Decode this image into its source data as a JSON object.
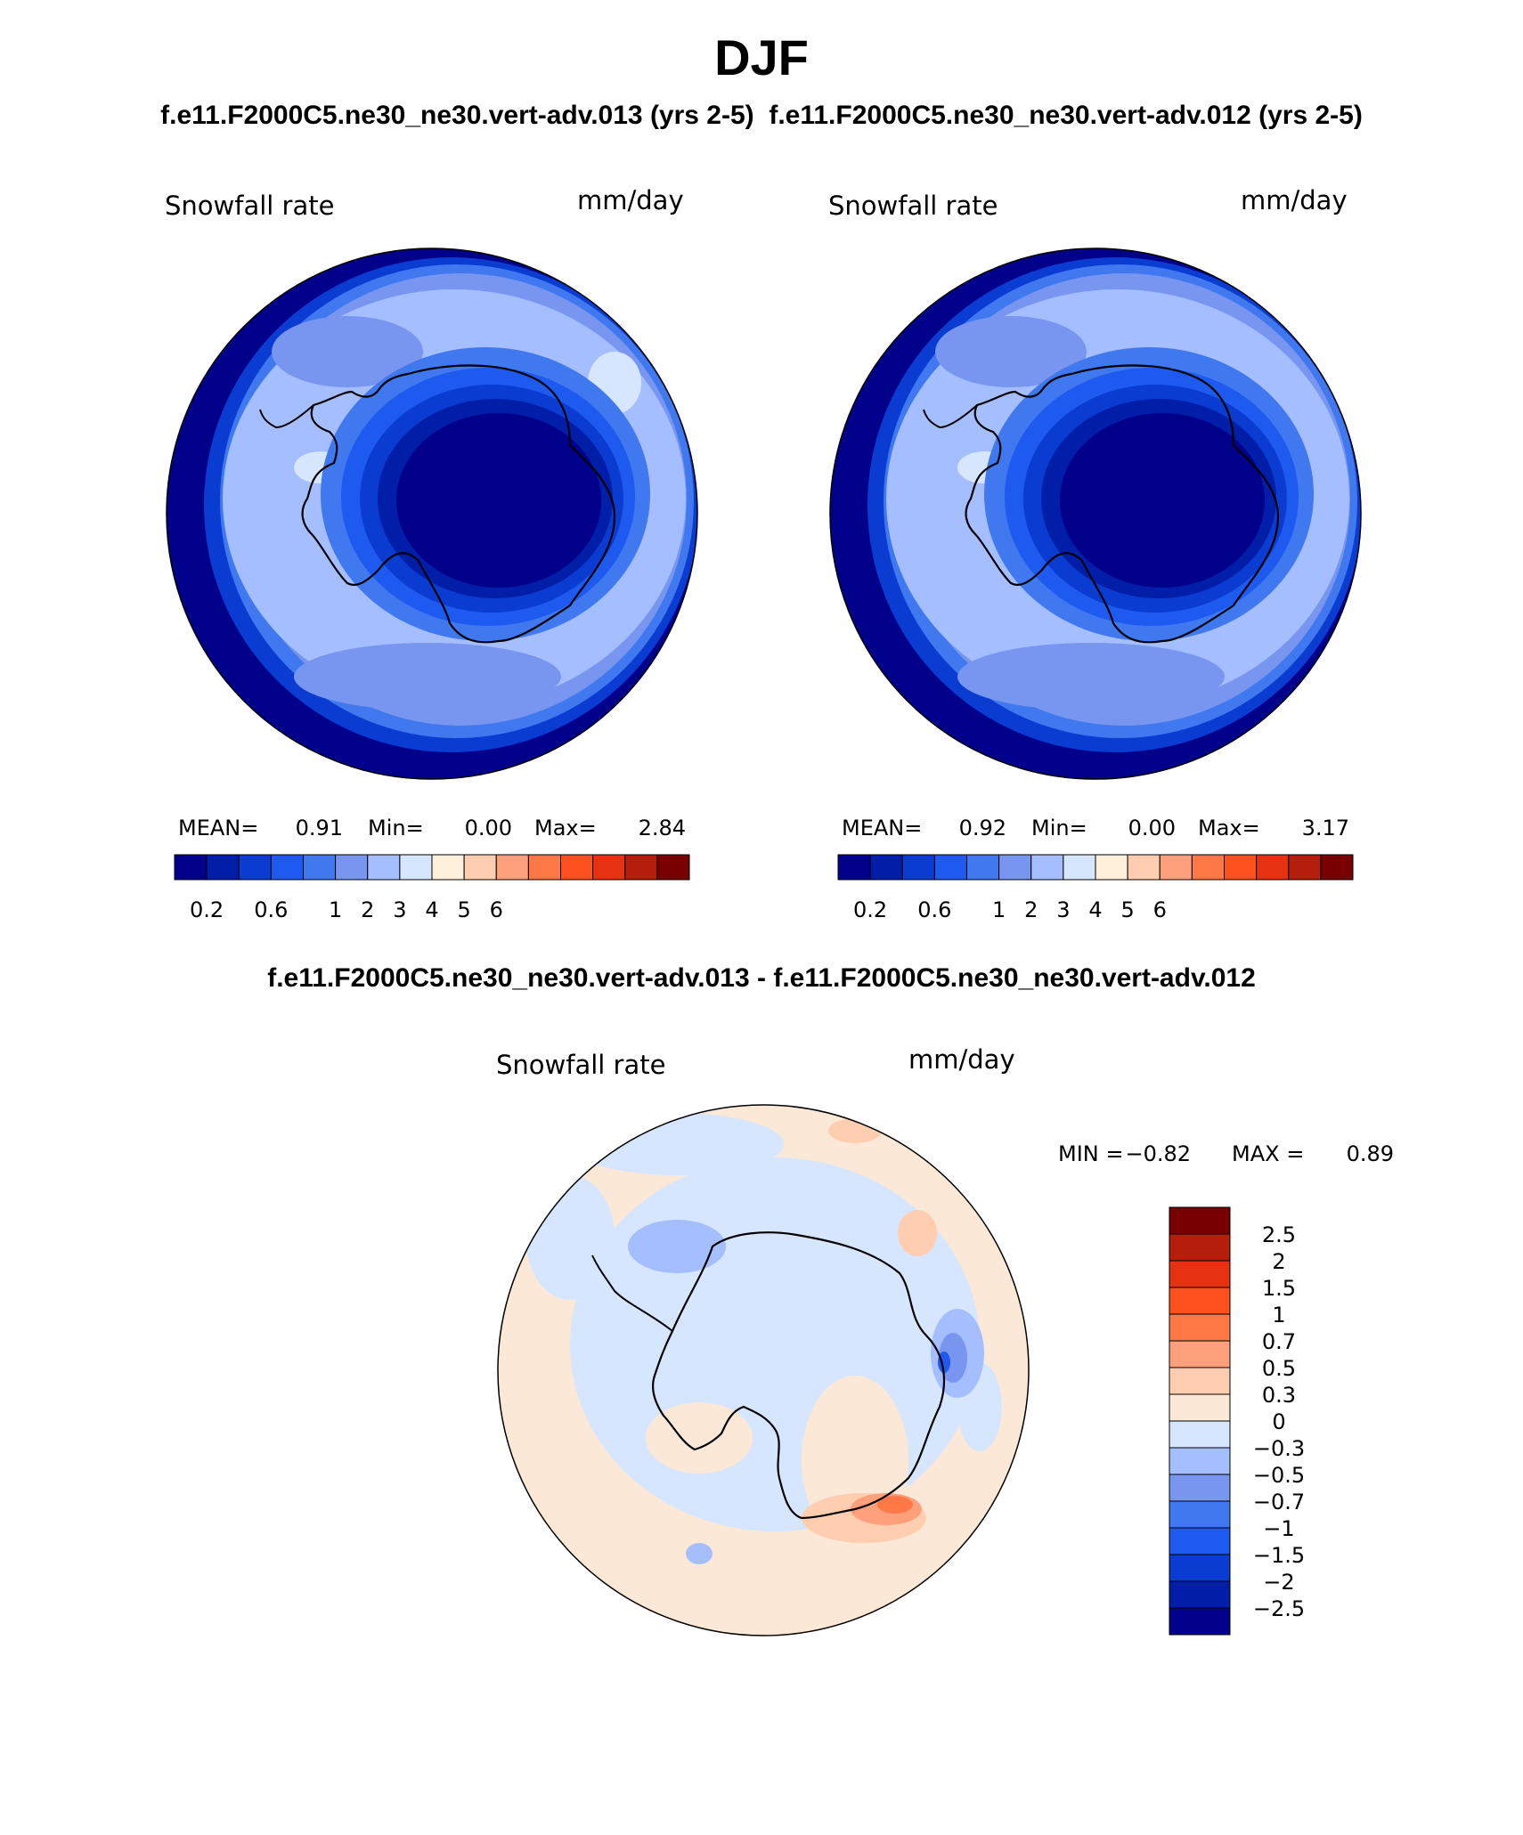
{
  "header": {
    "season": "DJF",
    "case_titles": "f.e11.F2000C5.ne30_ne30.vert-adv.013 (yrs 2-5)  f.e11.F2000C5.ne30_ne30.vert-adv.012 (yrs 2-5)",
    "diff_title": "f.e11.F2000C5.ne30_ne30.vert-adv.013 - f.e11.F2000C5.ne30_ne30.vert-adv.012"
  },
  "panels": [
    {
      "id": "case-013",
      "variable": "Snowfall rate",
      "units": "mm/day",
      "stats": {
        "mean_label": "MEAN=",
        "mean": "0.91",
        "min_label": "Min=",
        "min": "0.00",
        "max_label": "Max=",
        "max": "2.84"
      },
      "colorbar_labels": [
        "0.2",
        "0.6",
        "1",
        "2",
        "3",
        "4",
        "5",
        "6"
      ]
    },
    {
      "id": "case-012",
      "variable": "Snowfall rate",
      "units": "mm/day",
      "stats": {
        "mean_label": "MEAN=",
        "mean": "0.92",
        "min_label": "Min=",
        "min": "0.00",
        "max_label": "Max=",
        "max": "3.17"
      },
      "colorbar_labels": [
        "0.2",
        "0.6",
        "1",
        "2",
        "3",
        "4",
        "5",
        "6"
      ]
    }
  ],
  "diff_panel": {
    "variable": "Snowfall rate",
    "units": "mm/day",
    "stats": {
      "min_label": "MIN =",
      "min": "−0.82",
      "max_label": "MAX =",
      "max": "0.89"
    },
    "colorbar_labels": [
      "2.5",
      "2",
      "1.5",
      "1",
      "0.7",
      "0.5",
      "0.3",
      "0",
      "−0.3",
      "−0.5",
      "−0.7",
      "−1",
      "−1.5",
      "−2",
      "−2.5"
    ]
  },
  "colors": {
    "abs_scale": [
      "#00008b",
      "#001ea8",
      "#0a3cd2",
      "#1e5af0",
      "#4078f0",
      "#7896f0",
      "#a5beff",
      "#d7e6ff",
      "#fff0dc",
      "#ffcdaf",
      "#ffa07d",
      "#ff7846",
      "#ff5020",
      "#e63210",
      "#b41e0a",
      "#780000"
    ],
    "diff_scale": [
      "#00008b",
      "#001ea8",
      "#0a3cd2",
      "#1e5af0",
      "#4078f0",
      "#7896f0",
      "#a5beff",
      "#d7e6ff",
      "#fbe8d6",
      "#ffcdaf",
      "#ffa07d",
      "#ff7846",
      "#ff5020",
      "#e63210",
      "#b41e0a",
      "#780000"
    ]
  }
}
